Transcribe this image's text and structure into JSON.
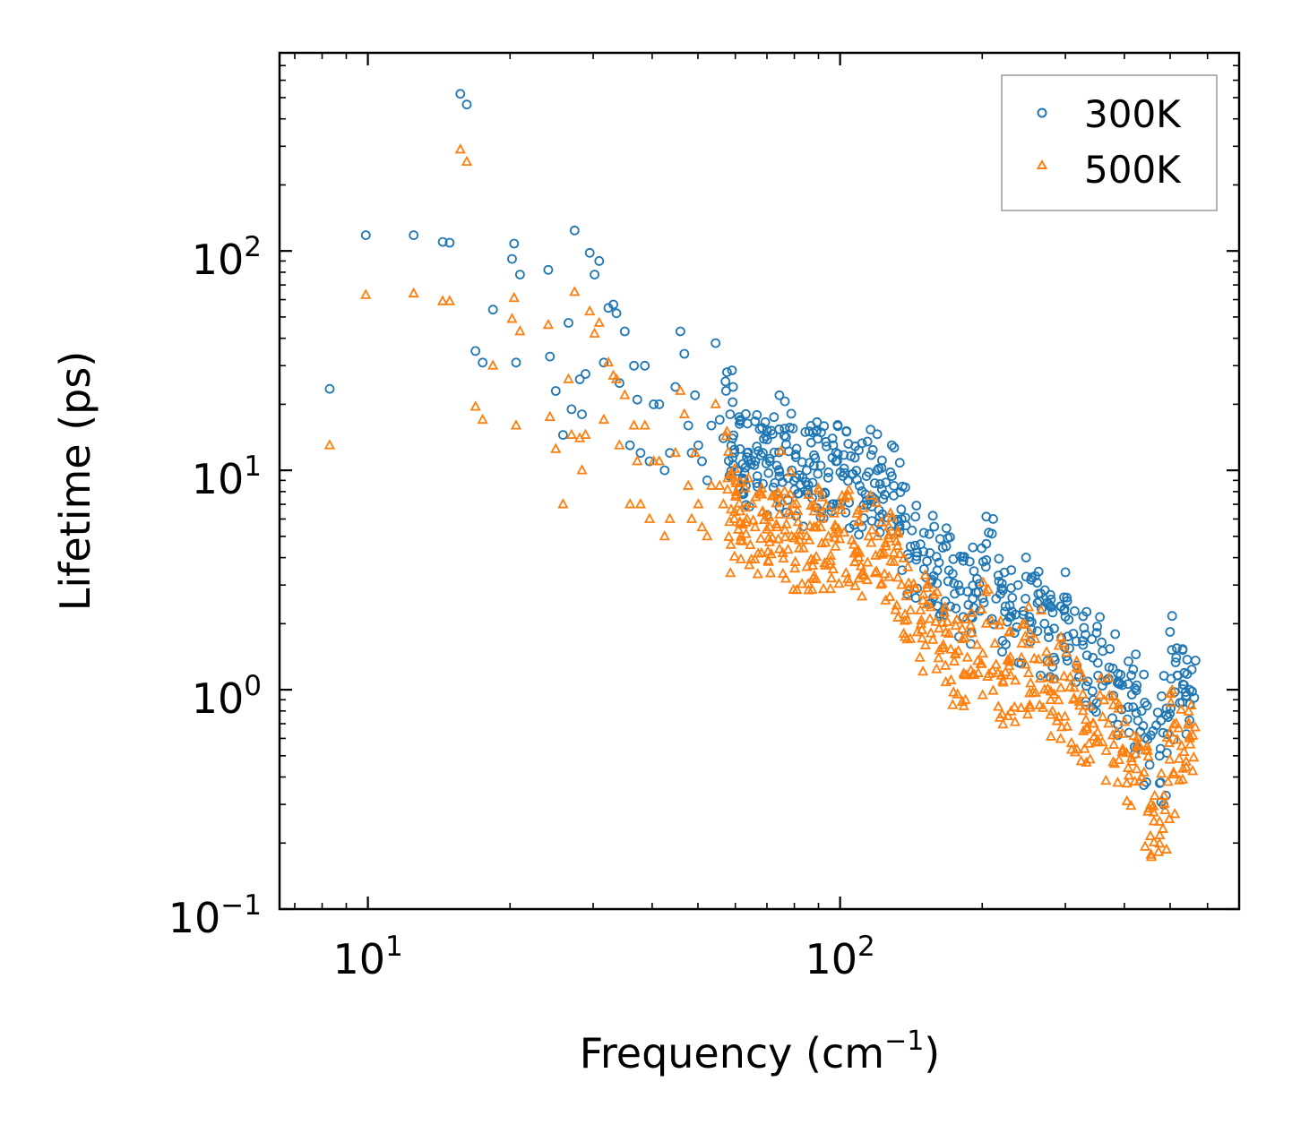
{
  "chart_data": {
    "type": "scatter",
    "title": "",
    "xlabel": "Frequency (cm",
    "xlabel_sup": "−1",
    "xlabel_close": ")",
    "ylabel": "Lifetime (ps)",
    "xscale": "log",
    "yscale": "log",
    "xlim": [
      6.5,
      700
    ],
    "ylim": [
      0.1,
      800
    ],
    "legend": {
      "position": "top-right",
      "framed": true
    },
    "x_ticks": [
      {
        "value": 10,
        "base": "10",
        "exp": "1"
      },
      {
        "value": 100,
        "base": "10",
        "exp": "2"
      }
    ],
    "y_ticks": [
      {
        "value": 0.1,
        "base": "10",
        "exp": "−1"
      },
      {
        "value": 1,
        "base": "10",
        "exp": "0"
      },
      {
        "value": 10,
        "base": "10",
        "exp": "1"
      },
      {
        "value": 100,
        "base": "10",
        "exp": "2"
      }
    ],
    "series": [
      {
        "name": "300K",
        "marker": "circle-open",
        "color": "#1f77b4",
        "x": [
          8.3,
          9.9,
          12.5,
          14.4,
          14.9,
          15.7,
          16.2,
          16.9,
          17.5,
          18.4,
          20.2,
          20.4,
          20.6,
          21.0,
          24.1,
          24.3,
          25.0,
          25.9,
          26.6,
          27.0,
          27.4,
          28.1,
          28.4,
          28.9,
          29.5,
          30.2,
          30.9,
          31.6,
          32.3,
          33.1,
          33.6,
          34.1,
          35.0,
          35.9,
          36.6,
          37.2,
          37.8,
          38.6,
          39.5,
          40.3,
          41.4,
          42.5,
          43.6,
          44.8,
          45.9,
          46.8,
          47.7,
          48.5,
          49.3,
          50.1,
          51.0,
          52.3,
          53.4,
          54.5,
          55.6,
          56.6,
          57.6,
          58.5,
          59.7,
          61.4,
          63.5,
          66.1,
          68.6,
          71.0,
          73.5,
          76.3,
          79.0,
          82.0,
          85.0,
          88.0,
          91.0,
          94.5,
          98.0,
          102.0,
          106.0,
          110.0,
          115.0,
          120.0,
          125.0,
          130.0,
          135.0,
          141.0,
          148.0,
          155.0,
          162.0,
          170.0,
          178.0,
          186.0,
          195.0,
          204.0,
          214.0,
          224.0,
          235.0,
          247.0,
          259.0,
          271.0,
          284.0,
          298.0,
          312.0,
          327.0,
          343.0,
          360.0,
          378.0,
          396.0,
          415.0,
          435.0,
          455.0,
          475.0,
          495.0,
          515.0,
          535.0,
          550.0
        ],
        "y": [
          23.5,
          118,
          118,
          110,
          109,
          520,
          465,
          35,
          31,
          54,
          92,
          108,
          31,
          78,
          82,
          33,
          23,
          14.5,
          47,
          19,
          124,
          26,
          18,
          27.5,
          98,
          78,
          90,
          31,
          55,
          57,
          52,
          25,
          43,
          13,
          30,
          21,
          12,
          30,
          11,
          20,
          20,
          10,
          12,
          24,
          43,
          34,
          16,
          12,
          22,
          13,
          11,
          9,
          16,
          38,
          17,
          14,
          28,
          18,
          12,
          12.5,
          12,
          11,
          12,
          11,
          10.5,
          15.5,
          10,
          9.5,
          10,
          10.5,
          10.5,
          9.8,
          11,
          10.2,
          9.6,
          8.5,
          9.8,
          10,
          8.8,
          8.5,
          6,
          4.5,
          4.6,
          4.2,
          3.8,
          3.5,
          3.0,
          2.8,
          3.2,
          3.9,
          2.6,
          2.4,
          2.2,
          2.6,
          3.3,
          2.0,
          1.9,
          2.3,
          1.8,
          1.6,
          1.4,
          1.5,
          1.25,
          1.05,
          0.95,
          0.8,
          0.62,
          0.5,
          0.75,
          1.4,
          1.05,
          1.0
        ]
      },
      {
        "name": "500K",
        "marker": "triangle-open",
        "color": "#ff7f0e",
        "x": [
          8.3,
          9.9,
          12.5,
          14.4,
          14.9,
          15.7,
          16.2,
          16.9,
          17.5,
          18.4,
          20.2,
          20.4,
          20.6,
          21.0,
          24.1,
          24.3,
          25.0,
          25.9,
          26.6,
          27.0,
          27.4,
          28.1,
          28.4,
          28.9,
          29.5,
          30.2,
          30.9,
          31.6,
          32.3,
          33.1,
          33.6,
          34.1,
          35.0,
          35.9,
          36.6,
          37.2,
          37.8,
          38.6,
          39.5,
          40.3,
          41.4,
          42.5,
          43.6,
          44.8,
          45.9,
          46.8,
          47.7,
          48.5,
          49.3,
          50.1,
          51.0,
          52.3,
          53.4,
          54.5,
          55.6,
          56.6,
          57.6,
          58.5,
          59.7,
          61.4,
          63.5,
          66.1,
          68.6,
          71.0,
          73.5,
          76.3,
          79.0,
          82.0,
          85.0,
          88.0,
          91.0,
          94.5,
          98.0,
          102.0,
          106.0,
          110.0,
          115.0,
          120.0,
          125.0,
          130.0,
          135.0,
          141.0,
          148.0,
          155.0,
          162.0,
          170.0,
          178.0,
          186.0,
          195.0,
          204.0,
          214.0,
          224.0,
          235.0,
          247.0,
          259.0,
          271.0,
          284.0,
          298.0,
          312.0,
          327.0,
          343.0,
          360.0,
          378.0,
          396.0,
          415.0,
          435.0,
          455.0,
          475.0,
          495.0,
          515.0,
          535.0,
          550.0
        ],
        "y": [
          13,
          63,
          64,
          59,
          59,
          290,
          255,
          19.5,
          17,
          30,
          49,
          61,
          16,
          43,
          46,
          17.5,
          12.5,
          7,
          26,
          14.5,
          65,
          14,
          10,
          14.5,
          53,
          42,
          47,
          17,
          31,
          27,
          26,
          13,
          22,
          7,
          16,
          11,
          7,
          16,
          6,
          11,
          11,
          5,
          6,
          12,
          23,
          18,
          8.5,
          6,
          12,
          7,
          5.5,
          5,
          8.5,
          20,
          8.5,
          7,
          15,
          9.5,
          6,
          6.5,
          6,
          5.5,
          6.5,
          5.5,
          5.5,
          8,
          5,
          4.8,
          5,
          5.5,
          5.5,
          5,
          5.5,
          5.2,
          4.8,
          4.2,
          5,
          5,
          4.5,
          4.2,
          3,
          2.3,
          2.3,
          2.1,
          1.9,
          1.8,
          1.5,
          1.4,
          1.6,
          2.0,
          1.3,
          1.2,
          1.1,
          1.3,
          1.7,
          1.0,
          0.95,
          1.15,
          0.9,
          0.8,
          0.7,
          0.75,
          0.62,
          0.52,
          0.47,
          0.4,
          0.3,
          0.25,
          0.38,
          0.7,
          0.52,
          0.6
        ]
      }
    ]
  }
}
